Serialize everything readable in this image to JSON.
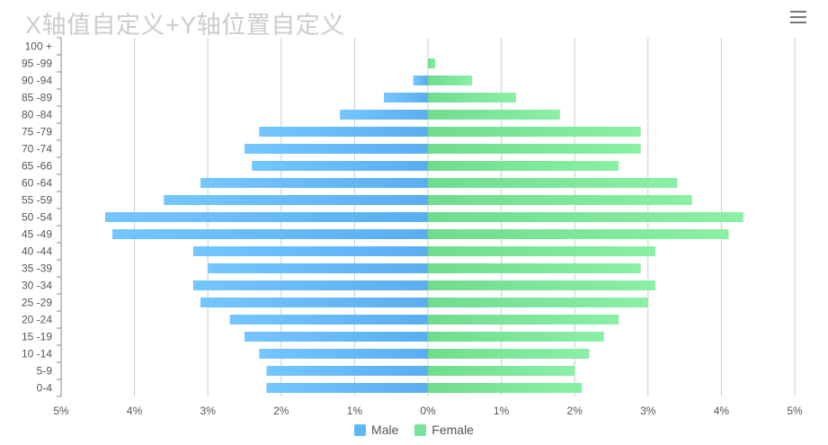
{
  "title": "X轴值自定义+Y轴位置自定义",
  "menu": {
    "icon": "hamburger-menu-icon"
  },
  "legend": {
    "male_label": "Male",
    "female_label": "Female"
  },
  "colors": {
    "male": "#5eb8f7",
    "female": "#77e39a",
    "grid": "#cccccc",
    "axis": "#888888",
    "title": "#cccccc"
  },
  "chart_data": {
    "type": "bar",
    "orientation": "horizontal",
    "title": "X轴值自定义+Y轴位置自定义",
    "categories": [
      "0-4",
      "5-9",
      "10 -14",
      "15 -19",
      "20 -24",
      "25 -29",
      "30 -34",
      "35 -39",
      "40 -44",
      "45 -49",
      "50 -54",
      "55 -59",
      "60 -64",
      "65 -66",
      "70 -74",
      "75 -79",
      "80 -84",
      "85 -89",
      "90 -94",
      "95 -99",
      "100 +"
    ],
    "series": [
      {
        "name": "Male",
        "values": [
          -2.2,
          -2.2,
          -2.3,
          -2.5,
          -2.7,
          -3.1,
          -3.2,
          -3.0,
          -3.2,
          -4.3,
          -4.4,
          -3.6,
          -3.1,
          -2.4,
          -2.5,
          -2.3,
          -1.2,
          -0.6,
          -0.2,
          0.0,
          0.0
        ]
      },
      {
        "name": "Female",
        "values": [
          2.1,
          2.0,
          2.2,
          2.4,
          2.6,
          3.0,
          3.1,
          2.9,
          3.1,
          4.1,
          4.3,
          3.6,
          3.4,
          2.6,
          2.9,
          2.9,
          1.8,
          1.2,
          0.6,
          0.1,
          0.0
        ]
      }
    ],
    "xlim": [
      -5,
      5
    ],
    "x_ticks": [
      -5,
      -4,
      -3,
      -2,
      -1,
      0,
      1,
      2,
      3,
      4,
      5
    ],
    "x_tick_labels": [
      "5%",
      "4%",
      "3%",
      "2%",
      "1%",
      "0%",
      "1%",
      "2%",
      "3%",
      "4%",
      "5%"
    ],
    "xlabel": "",
    "ylabel": "",
    "grid": true,
    "legend_position": "bottom-center"
  }
}
